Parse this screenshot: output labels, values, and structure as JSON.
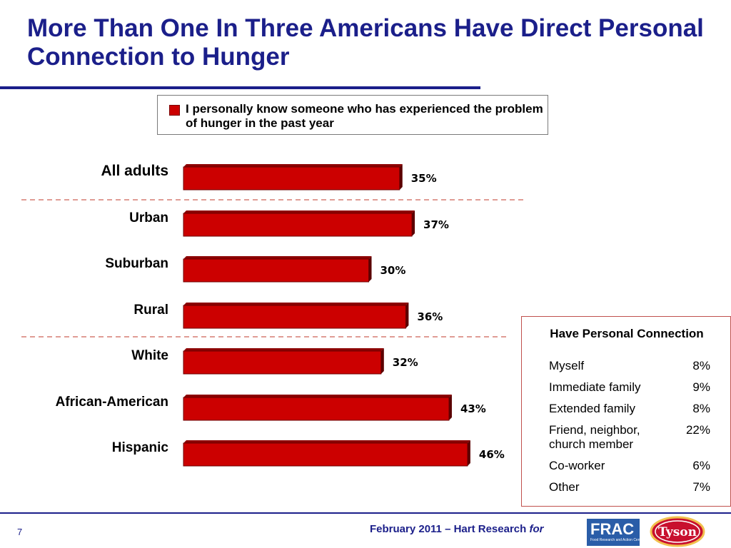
{
  "title": "More Than One In Three Americans Have Direct Personal Connection to Hunger",
  "legend_text": "I personally know someone who has experienced the problem of hunger in the past year",
  "chart_data": {
    "type": "bar",
    "orientation": "horizontal",
    "categories": [
      "All adults",
      "Urban",
      "Suburban",
      "Rural",
      "White",
      "African-American",
      "Hispanic"
    ],
    "values": [
      35,
      37,
      30,
      36,
      32,
      43,
      46
    ],
    "value_labels": [
      "35%",
      "37%",
      "30%",
      "36%",
      "32%",
      "43%",
      "46%"
    ],
    "unit": "%",
    "series": [
      {
        "name": "I personally know someone who has experienced the problem of hunger in the past year",
        "values": [
          35,
          37,
          30,
          36,
          32,
          43,
          46
        ]
      }
    ],
    "color": "#cc0000",
    "group_separators_after": [
      "All adults",
      "Rural"
    ],
    "grid": false
  },
  "side_table": {
    "title": "Have Personal Connection",
    "rows": [
      {
        "label": "Myself",
        "value": "8%"
      },
      {
        "label": "Immediate family",
        "value": "9%"
      },
      {
        "label": "Extended family",
        "value": "8%"
      },
      {
        "label": "Friend, neighbor, church member",
        "value": "22%"
      },
      {
        "label": "Co-worker",
        "value": "6%"
      },
      {
        "label": "Other",
        "value": "7%"
      }
    ]
  },
  "footer": {
    "page_number": "7",
    "text": "February 2011 – Hart Research",
    "text_italic": "for",
    "frac_logo_text": "FRAC",
    "frac_logo_subtext": "Food Research and Action Center",
    "tyson_logo_text": "Tyson"
  }
}
